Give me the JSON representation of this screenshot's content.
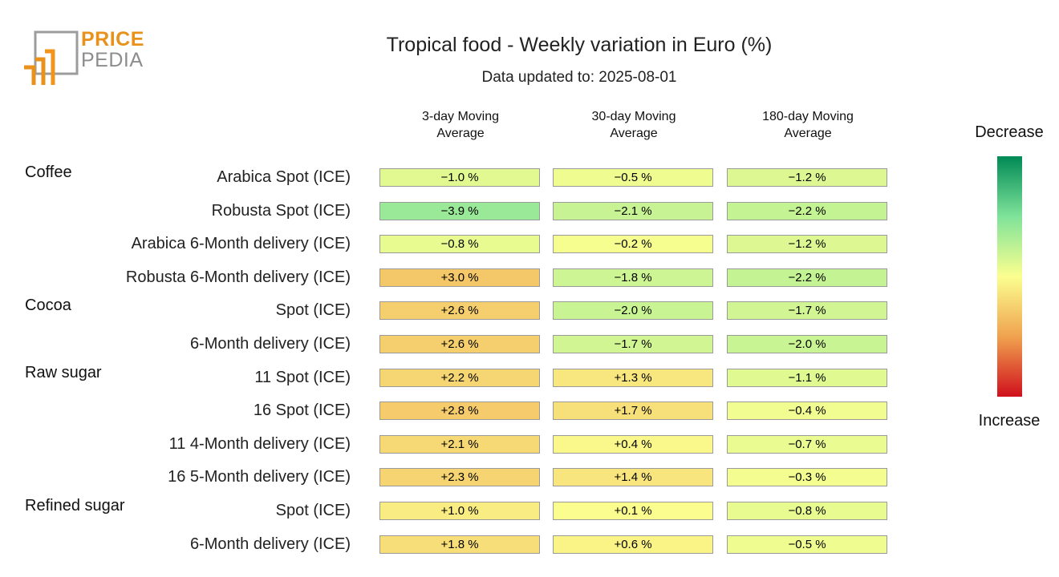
{
  "logo": {
    "line1": "PRICE",
    "line2": "PEDIA"
  },
  "chart_data": {
    "type": "heatmap",
    "title": "Tropical food - Weekly variation in Euro (%)",
    "subtitle": "Data updated to: 2025-08-01",
    "columns": [
      "3-day Moving\nAverage",
      "30-day Moving\nAverage",
      "180-day Moving\nAverage"
    ],
    "groups": [
      {
        "name": "Coffee",
        "rows": [
          {
            "label": "Arabica Spot (ICE)",
            "values": [
              -1.0,
              -0.5,
              -1.2
            ],
            "text": [
              "−1.0 %",
              "−0.5 %",
              "−1.2 %"
            ]
          },
          {
            "label": "Robusta Spot (ICE)",
            "values": [
              -3.9,
              -2.1,
              -2.2
            ],
            "text": [
              "−3.9 %",
              "−2.1 %",
              "−2.2 %"
            ]
          },
          {
            "label": "Arabica 6-Month delivery (ICE)",
            "values": [
              -0.8,
              -0.2,
              -1.2
            ],
            "text": [
              "−0.8 %",
              "−0.2 %",
              "−1.2 %"
            ]
          },
          {
            "label": "Robusta 6-Month delivery (ICE)",
            "values": [
              3.0,
              -1.8,
              -2.2
            ],
            "text": [
              "+3.0 %",
              "−1.8 %",
              "−2.2 %"
            ]
          }
        ]
      },
      {
        "name": "Cocoa",
        "rows": [
          {
            "label": "Spot (ICE)",
            "values": [
              2.6,
              -2.0,
              -1.7
            ],
            "text": [
              "+2.6 %",
              "−2.0 %",
              "−1.7 %"
            ]
          },
          {
            "label": "6-Month delivery (ICE)",
            "values": [
              2.6,
              -1.7,
              -2.0
            ],
            "text": [
              "+2.6 %",
              "−1.7 %",
              "−2.0 %"
            ]
          }
        ]
      },
      {
        "name": "Raw sugar",
        "rows": [
          {
            "label": "11 Spot (ICE)",
            "values": [
              2.2,
              1.3,
              -1.1
            ],
            "text": [
              "+2.2 %",
              "+1.3 %",
              "−1.1 %"
            ]
          },
          {
            "label": "16 Spot (ICE)",
            "values": [
              2.8,
              1.7,
              -0.4
            ],
            "text": [
              "+2.8 %",
              "+1.7 %",
              "−0.4 %"
            ]
          },
          {
            "label": "11 4-Month delivery (ICE)",
            "values": [
              2.1,
              0.4,
              -0.7
            ],
            "text": [
              "+2.1 %",
              "+0.4 %",
              "−0.7 %"
            ]
          },
          {
            "label": "16 5-Month delivery (ICE)",
            "values": [
              2.3,
              1.4,
              -0.3
            ],
            "text": [
              "+2.3 %",
              "+1.4 %",
              "−0.3 %"
            ]
          }
        ]
      },
      {
        "name": "Refined sugar",
        "rows": [
          {
            "label": "Spot (ICE)",
            "values": [
              1.0,
              0.1,
              -0.8
            ],
            "text": [
              "+1.0 %",
              "+0.1 %",
              "−0.8 %"
            ]
          },
          {
            "label": "6-Month delivery (ICE)",
            "values": [
              1.8,
              0.6,
              -0.5
            ],
            "text": [
              "+1.8 %",
              "+0.6 %",
              "−0.5 %"
            ]
          }
        ]
      }
    ],
    "color_range": [
      -10,
      10
    ],
    "colorscale": [
      "#008a55",
      "#7fe39a",
      "#fbff8f",
      "#f0a24f",
      "#d0101d"
    ],
    "legend": {
      "top_label": "Decrease",
      "bottom_label": "Increase",
      "placement": "right"
    }
  }
}
